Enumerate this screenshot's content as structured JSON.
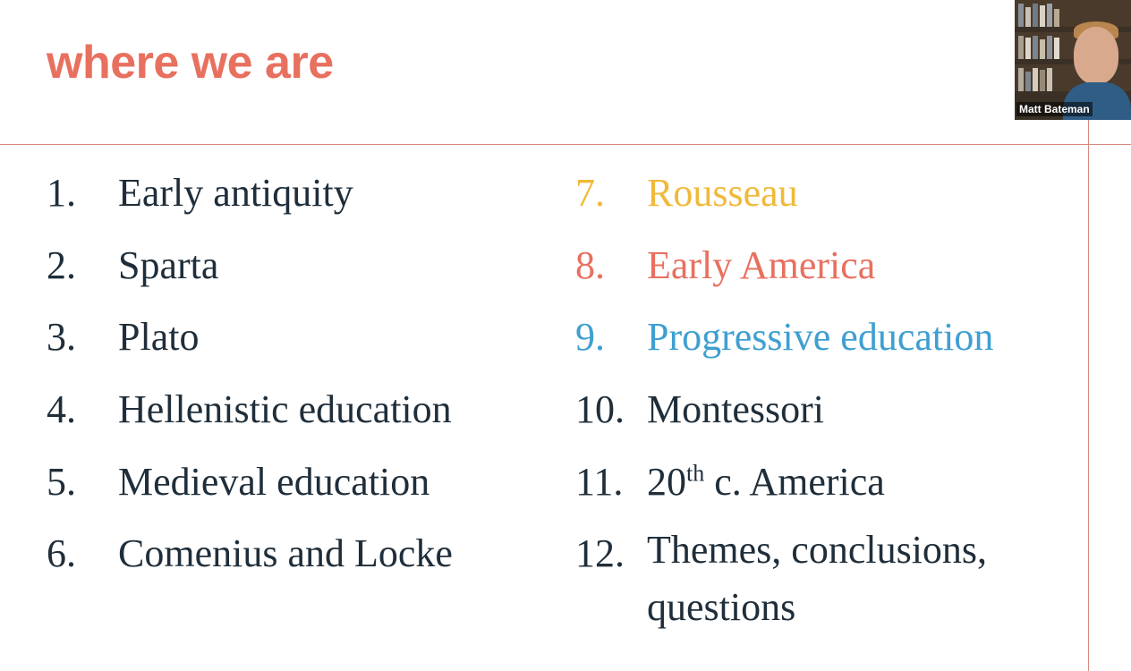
{
  "colors": {
    "title": "#e8705f",
    "text": "#1f2e3a",
    "rule": "#d98a80",
    "rousseau": "#f0b93a",
    "early_america": "#e8705f",
    "progressive": "#3f9fd1"
  },
  "slide": {
    "title": "where we are",
    "left_items": [
      {
        "num": "1.",
        "label": "Early antiquity"
      },
      {
        "num": "2.",
        "label": "Sparta"
      },
      {
        "num": "3.",
        "label": "Plato"
      },
      {
        "num": "4.",
        "label": "Hellenistic education"
      },
      {
        "num": "5.",
        "label": "Medieval education"
      },
      {
        "num": "6.",
        "label": "Comenius and Locke"
      }
    ],
    "right_items": [
      {
        "num": "7.",
        "label": "Rousseau"
      },
      {
        "num": "8.",
        "label": "Early America"
      },
      {
        "num": "9.",
        "label": "Progressive education"
      },
      {
        "num": "10.",
        "label": "Montessori"
      },
      {
        "num": "11.",
        "label_prefix": "20",
        "label_sup": "th",
        "label_suffix": " c. America"
      },
      {
        "num": "12.",
        "label": "Themes, conclusions, questions"
      }
    ]
  },
  "video": {
    "participant_name": "Matt Bateman"
  }
}
